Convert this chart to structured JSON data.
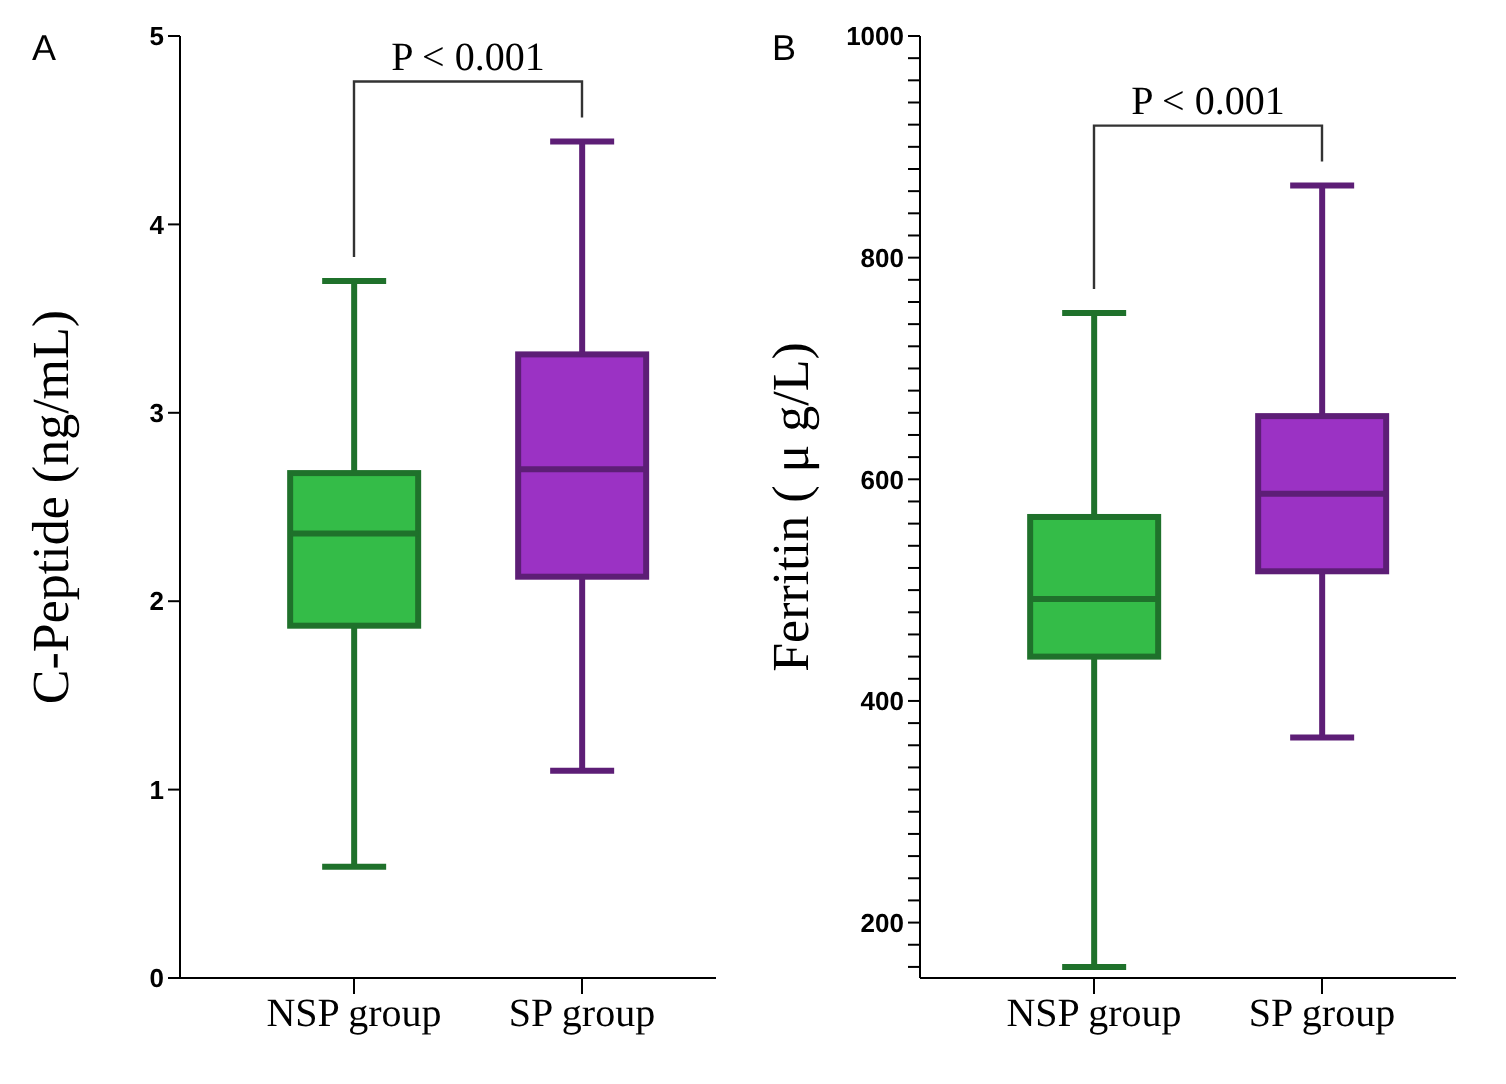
{
  "chart_data": [
    {
      "type": "box",
      "title": "A",
      "ylabel": "C-Peptide (ng/mL)",
      "categories": [
        "NSP group",
        "SP group"
      ],
      "colors": [
        "#34bc48",
        "#9b32c4"
      ],
      "boxes": [
        {
          "low": 0.59,
          "q1": 1.87,
          "median": 2.36,
          "q3": 2.68,
          "high": 3.7
        },
        {
          "low": 1.1,
          "q1": 2.13,
          "median": 2.7,
          "q3": 3.31,
          "high": 4.44
        }
      ],
      "ylim": [
        0,
        5
      ],
      "yticks": [
        0,
        1,
        2,
        3,
        4,
        5
      ],
      "annotations": [
        "P < 0.001"
      ]
    },
    {
      "type": "box",
      "title": "B",
      "ylabel": "Ferritin ( μ g/L)",
      "categories": [
        "NSP group",
        "SP group"
      ],
      "colors": [
        "#34bc48",
        "#9b32c4"
      ],
      "boxes": [
        {
          "low": 160,
          "q1": 440,
          "median": 492,
          "q3": 566,
          "high": 750
        },
        {
          "low": 367,
          "q1": 517,
          "median": 587,
          "q3": 657,
          "high": 865
        }
      ],
      "ylim": [
        150,
        1000
      ],
      "yticks": [
        {
          "value": 160,
          "label": null
        },
        {
          "value": 180,
          "label": null
        },
        200,
        {
          "value": 220,
          "label": null
        },
        {
          "value": 240,
          "label": null
        },
        {
          "value": 260,
          "label": null
        },
        {
          "value": 280,
          "label": null
        },
        {
          "value": 300,
          "label": null
        },
        {
          "value": 320,
          "label": null
        },
        {
          "value": 340,
          "label": null
        },
        {
          "value": 360,
          "label": null
        },
        {
          "value": 380,
          "label": null
        },
        400,
        {
          "value": 420,
          "label": null
        },
        {
          "value": 440,
          "label": null
        },
        {
          "value": 460,
          "label": null
        },
        {
          "value": 480,
          "label": null
        },
        {
          "value": 500,
          "label": null
        },
        {
          "value": 520,
          "label": null
        },
        {
          "value": 540,
          "label": null
        },
        {
          "value": 560,
          "label": null
        },
        {
          "value": 580,
          "label": null
        },
        600,
        {
          "value": 620,
          "label": null
        },
        {
          "value": 640,
          "label": null
        },
        {
          "value": 660,
          "label": null
        },
        {
          "value": 680,
          "label": null
        },
        {
          "value": 700,
          "label": null
        },
        {
          "value": 720,
          "label": null
        },
        {
          "value": 740,
          "label": null
        },
        {
          "value": 760,
          "label": null
        },
        {
          "value": 780,
          "label": null
        },
        800,
        {
          "value": 820,
          "label": null
        },
        {
          "value": 840,
          "label": null
        },
        {
          "value": 860,
          "label": null
        },
        {
          "value": 880,
          "label": null
        },
        {
          "value": 900,
          "label": null
        },
        {
          "value": 920,
          "label": null
        },
        {
          "value": 940,
          "label": null
        },
        {
          "value": 960,
          "label": null
        },
        {
          "value": 980,
          "label": null
        },
        1000
      ],
      "annotations": [
        "P < 0.001"
      ]
    }
  ]
}
